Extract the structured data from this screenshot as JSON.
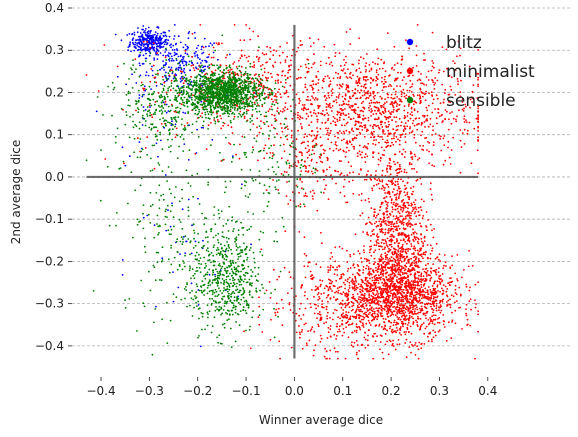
{
  "chart_data": {
    "type": "scatter",
    "title": "",
    "xlabel": "Winner average dice",
    "ylabel": "2nd average dice",
    "xlim": [
      -0.46,
      0.57
    ],
    "ylim": [
      -0.45,
      0.4
    ],
    "xticks": [
      -0.4,
      -0.3,
      -0.2,
      -0.1,
      0.0,
      0.1,
      0.2,
      0.3,
      0.4
    ],
    "xtick_labels": [
      "−0.4",
      "−0.3",
      "−0.2",
      "−0.1",
      "0.0",
      "0.1",
      "0.2",
      "0.3",
      "0.4"
    ],
    "yticks": [
      -0.4,
      -0.3,
      -0.2,
      -0.1,
      0.0,
      0.1,
      0.2,
      0.3,
      0.4
    ],
    "ytick_labels": [
      "−0.4",
      "−0.3",
      "−0.2",
      "−0.1",
      "0.0",
      "0.1",
      "0.2",
      "0.3",
      "0.4"
    ],
    "grid": "horizontal dashed",
    "legend_position": "top-right",
    "reference_lines": {
      "horizontal": {
        "y": 0.0,
        "x_range": [
          -0.43,
          0.38
        ]
      },
      "vertical": {
        "x": 0.0,
        "y_range": [
          -0.43,
          0.36
        ]
      }
    },
    "series": [
      {
        "name": "blitz",
        "color": "#0000ff",
        "clusters": [
          {
            "cx": -0.3,
            "cy": 0.32,
            "sx": 0.02,
            "sy": 0.015,
            "n": 300
          },
          {
            "cx": -0.23,
            "cy": 0.27,
            "sx": 0.04,
            "sy": 0.03,
            "n": 200
          },
          {
            "cx": -0.27,
            "cy": 0.15,
            "sx": 0.06,
            "sy": 0.06,
            "n": 60
          },
          {
            "cx": -0.23,
            "cy": -0.2,
            "sx": 0.06,
            "sy": 0.09,
            "n": 40
          }
        ]
      },
      {
        "name": "minimalist",
        "color": "#ff0000",
        "clusters": [
          {
            "cx": 0.16,
            "cy": 0.16,
            "sx": 0.11,
            "sy": 0.07,
            "n": 1200
          },
          {
            "cx": 0.21,
            "cy": -0.12,
            "sx": 0.03,
            "sy": 0.09,
            "n": 800
          },
          {
            "cx": 0.22,
            "cy": -0.28,
            "sx": 0.06,
            "sy": 0.05,
            "n": 1400
          },
          {
            "cx": 0.1,
            "cy": -0.3,
            "sx": 0.08,
            "sy": 0.06,
            "n": 500
          },
          {
            "cx": -0.08,
            "cy": 0.22,
            "sx": 0.07,
            "sy": 0.05,
            "n": 300
          },
          {
            "cx": -0.22,
            "cy": 0.18,
            "sx": 0.08,
            "sy": 0.08,
            "n": 120
          },
          {
            "cx": 0.04,
            "cy": 0.03,
            "sx": 0.05,
            "sy": 0.05,
            "n": 150
          }
        ]
      },
      {
        "name": "sensible",
        "color": "#008000",
        "clusters": [
          {
            "cx": -0.15,
            "cy": 0.2,
            "sx": 0.04,
            "sy": 0.025,
            "n": 1200
          },
          {
            "cx": -0.26,
            "cy": 0.18,
            "sx": 0.05,
            "sy": 0.05,
            "n": 250
          },
          {
            "cx": -0.14,
            "cy": -0.25,
            "sx": 0.035,
            "sy": 0.06,
            "n": 500
          },
          {
            "cx": -0.22,
            "cy": -0.15,
            "sx": 0.07,
            "sy": 0.09,
            "n": 200
          },
          {
            "cx": -0.05,
            "cy": 0.05,
            "sx": 0.05,
            "sy": 0.08,
            "n": 150
          },
          {
            "cx": -0.3,
            "cy": 0.05,
            "sx": 0.05,
            "sy": 0.12,
            "n": 100
          }
        ]
      }
    ]
  }
}
